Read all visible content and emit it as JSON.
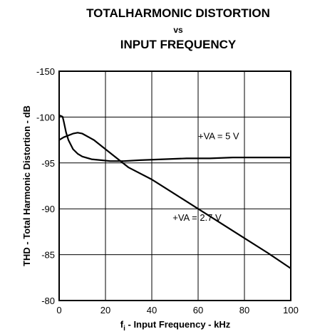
{
  "chart_data": {
    "type": "line",
    "title_line1": "TOTALHARMONIC DISTORTION",
    "title_line2": "vs",
    "title_line3": "INPUT FREQUENCY",
    "xlabel_main": "f",
    "xlabel_sub": "i",
    "xlabel_rest": " - Input Frequency - kHz",
    "ylabel": "THD - Total Harmonic Distortion - dB",
    "xlim": [
      0,
      100
    ],
    "ylim": [
      -150,
      -80
    ],
    "y_reversed_display": true,
    "x_ticks": [
      0,
      20,
      40,
      60,
      80,
      100
    ],
    "x_tick_labels": [
      "0",
      "20",
      "40",
      "60",
      "80",
      "100"
    ],
    "y_ticks": [
      -150,
      -100,
      -95,
      -90,
      -85,
      -80
    ],
    "y_tick_labels": [
      "-150",
      "-100",
      "-95",
      "-90",
      "-85",
      "-80"
    ],
    "grid": true,
    "series": [
      {
        "name": "+VA = 5 V",
        "x": [
          0,
          0.5,
          1,
          1.5,
          2,
          3,
          4,
          6,
          8,
          10,
          14,
          18,
          22,
          28,
          35,
          45,
          55,
          65,
          75,
          85,
          95,
          100
        ],
        "y": [
          -102,
          -101.5,
          -101,
          -100.2,
          -99.5,
          -98.3,
          -97.5,
          -96.5,
          -96.0,
          -95.7,
          -95.4,
          -95.3,
          -95.2,
          -95.2,
          -95.3,
          -95.4,
          -95.5,
          -95.5,
          -95.6,
          -95.6,
          -95.6,
          -95.6
        ]
      },
      {
        "name": "+VA = 2.7 V",
        "x": [
          0,
          2,
          4,
          6,
          8,
          10,
          15,
          20,
          30,
          40,
          50,
          60,
          70,
          80,
          90,
          100
        ],
        "y": [
          -97.5,
          -97.8,
          -98.0,
          -98.2,
          -98.3,
          -98.2,
          -97.5,
          -96.5,
          -94.5,
          -93.2,
          -91.6,
          -90.0,
          -88.4,
          -86.8,
          -85.2,
          -83.5
        ]
      }
    ],
    "annotations": [
      {
        "text": "+VA = 5 V",
        "x": 60,
        "y": -97.6
      },
      {
        "text": "+VA = 2.7 V",
        "x": 49,
        "y": -88.7
      }
    ]
  }
}
